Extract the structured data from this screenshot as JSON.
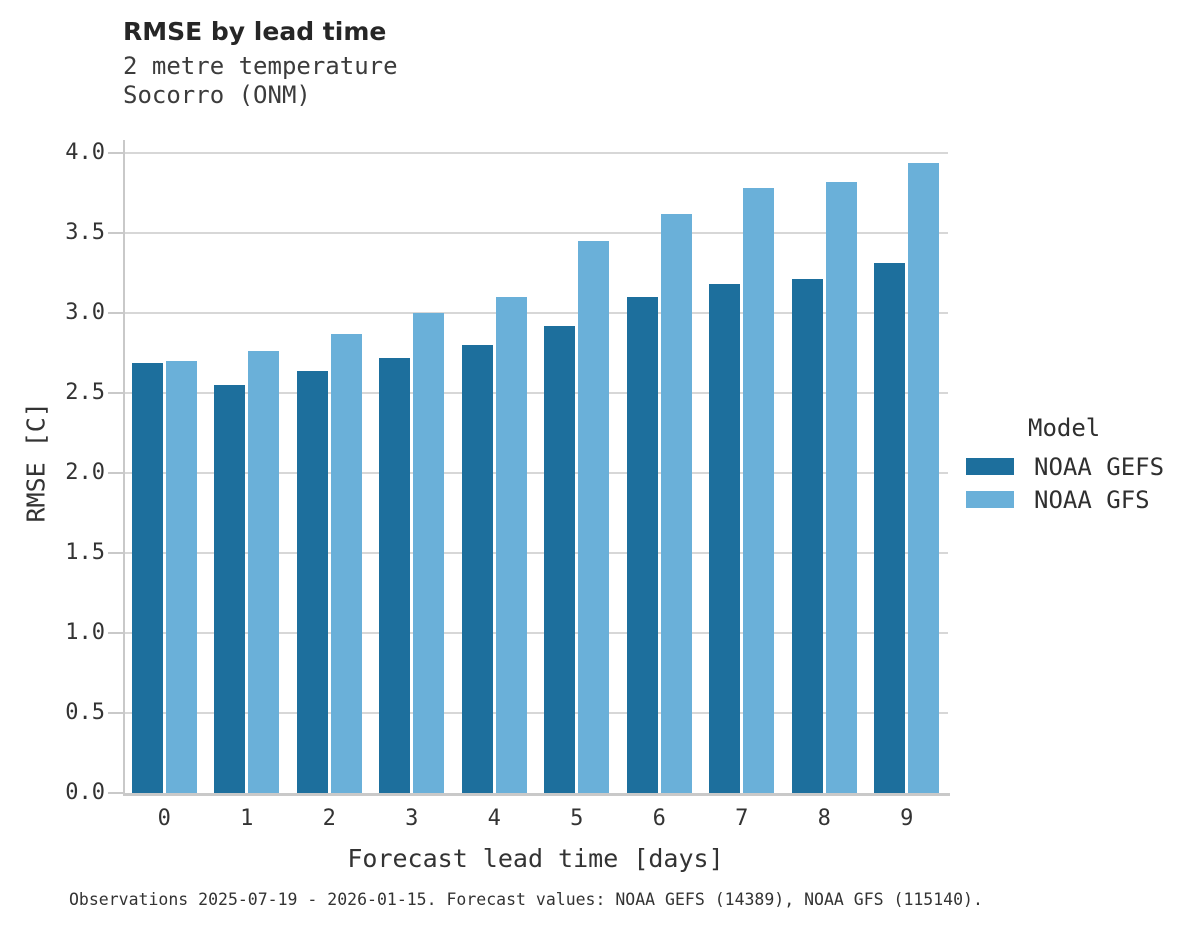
{
  "title": "RMSE by lead time",
  "subtitle_line1": "2 metre temperature",
  "subtitle_line2": "Socorro (ONM)",
  "footer": "Observations 2025-07-19 - 2026-01-15. Forecast values: NOAA GEFS (14389), NOAA GFS (115140).",
  "legend": {
    "title": "Model",
    "items": [
      {
        "label": "NOAA GEFS",
        "color": "#1d6f9d"
      },
      {
        "label": "NOAA GFS",
        "color": "#6ab0d9"
      }
    ]
  },
  "colors": {
    "gefs_bar": "#1d6f9d",
    "gfs_bar": "#6ab0d9",
    "gridline": "#d7d7d7",
    "spine": "#c9c9c9",
    "text": "#333333"
  },
  "chart_data": {
    "type": "bar",
    "title": "RMSE by lead time",
    "subtitle": "2 metre temperature, Socorro (ONM)",
    "xlabel": "Forecast lead time [days]",
    "ylabel": "RMSE [C]",
    "categories": [
      "0",
      "1",
      "2",
      "3",
      "4",
      "5",
      "6",
      "7",
      "8",
      "9"
    ],
    "series": [
      {
        "name": "NOAA GEFS",
        "color": "#1d6f9d",
        "values": [
          2.69,
          2.55,
          2.64,
          2.72,
          2.8,
          2.92,
          3.1,
          3.18,
          3.21,
          3.31
        ]
      },
      {
        "name": "NOAA GFS",
        "color": "#6ab0d9",
        "values": [
          2.7,
          2.76,
          2.87,
          3.0,
          3.1,
          3.45,
          3.62,
          3.78,
          3.82,
          3.94
        ]
      }
    ],
    "ylim": [
      0.0,
      4.0
    ],
    "ytick_step": 0.5,
    "ytick_labels": [
      "0.0",
      "0.5",
      "1.0",
      "1.5",
      "2.0",
      "2.5",
      "3.0",
      "3.5",
      "4.0"
    ],
    "grid": true,
    "legend_title": "Model",
    "legend_position": "right"
  }
}
